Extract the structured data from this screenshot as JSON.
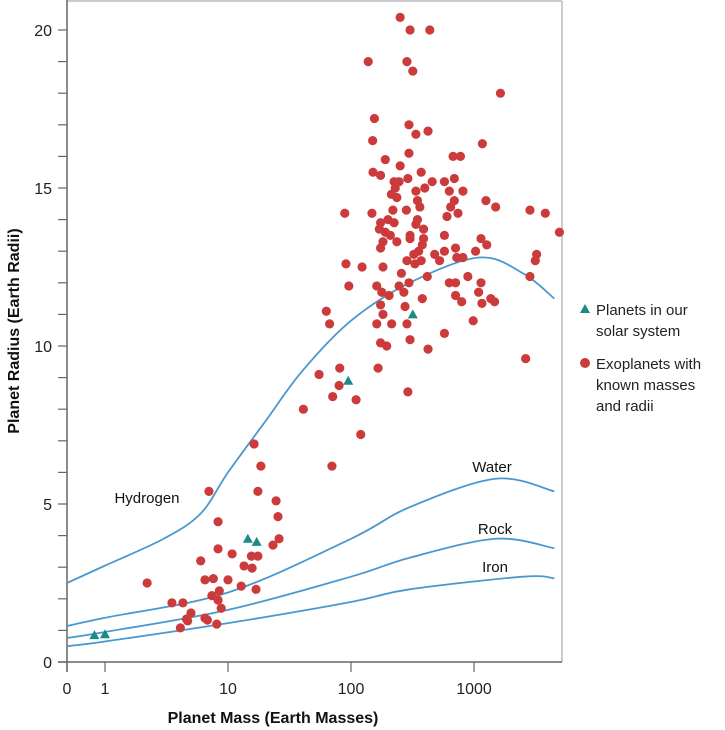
{
  "chart_data": {
    "type": "scatter",
    "title": "",
    "xlabel": "Planet Mass (Earth Masses)",
    "ylabel": "Planet Radius (Earth Radii)",
    "x_scale": "log (with 0 at origin)",
    "x_ticks": [
      {
        "value": 0,
        "label": "0"
      },
      {
        "value": 1,
        "label": "1"
      },
      {
        "value": 10,
        "label": "10"
      },
      {
        "value": 100,
        "label": "100"
      },
      {
        "value": 1000,
        "label": "1000"
      }
    ],
    "y_ticks": [
      {
        "value": 0,
        "label": "0"
      },
      {
        "value": 5,
        "label": "5"
      },
      {
        "value": 10,
        "label": "10"
      },
      {
        "value": 15,
        "label": "15"
      },
      {
        "value": 20,
        "label": "20"
      }
    ],
    "ylim": [
      0,
      21
    ],
    "xlim": [
      0,
      5000
    ],
    "grid": false,
    "legend_position": "right",
    "colors": {
      "solar": "#1a8c84",
      "exo": "#cc3b3b",
      "curve": "#4a98d0"
    },
    "series": [
      {
        "name": "Planets in our solar system",
        "marker": "triangle",
        "points": [
          [
            0.82,
            0.85
          ],
          [
            1,
            0.88
          ],
          [
            14.5,
            3.9
          ],
          [
            17.1,
            3.8
          ],
          [
            95,
            8.9
          ],
          [
            318,
            11.0
          ]
        ]
      },
      {
        "name": "Exoplanets with known masses and radii",
        "marker": "circle",
        "points": [
          [
            2.2,
            2.5
          ],
          [
            3.5,
            1.87
          ],
          [
            4.3,
            1.87
          ],
          [
            5.0,
            1.55
          ],
          [
            4.6,
            1.36
          ],
          [
            4.7,
            1.3
          ],
          [
            4.1,
            1.08
          ],
          [
            6.5,
            2.6
          ],
          [
            7.6,
            2.64
          ],
          [
            10,
            2.6
          ],
          [
            7.4,
            2.1
          ],
          [
            8.5,
            2.25
          ],
          [
            8.3,
            1.96
          ],
          [
            8.8,
            1.7
          ],
          [
            6.5,
            1.39
          ],
          [
            6.8,
            1.33
          ],
          [
            8.1,
            1.2
          ],
          [
            12.8,
            2.4
          ],
          [
            13.5,
            3.04
          ],
          [
            15.7,
            2.97
          ],
          [
            16.9,
            2.3
          ],
          [
            6.0,
            3.2
          ],
          [
            8.3,
            3.58
          ],
          [
            7.0,
            5.4
          ],
          [
            8.3,
            4.44
          ],
          [
            10.8,
            3.42
          ],
          [
            15.5,
            3.35
          ],
          [
            17.5,
            3.35
          ],
          [
            16.3,
            6.9
          ],
          [
            17.5,
            5.4
          ],
          [
            18.5,
            6.2
          ],
          [
            23.2,
            3.7
          ],
          [
            24.6,
            5.1
          ],
          [
            25.5,
            4.6
          ],
          [
            26,
            3.9
          ],
          [
            41,
            8.0
          ],
          [
            55,
            9.1
          ],
          [
            81,
            9.3
          ],
          [
            80,
            8.75
          ],
          [
            71,
            8.4
          ],
          [
            110,
            8.3
          ],
          [
            120,
            7.2
          ],
          [
            70,
            6.2
          ],
          [
            166,
            9.3
          ],
          [
            290,
            8.55
          ],
          [
            63,
            11.1
          ],
          [
            67,
            10.7
          ],
          [
            91,
            12.6
          ],
          [
            96,
            11.9
          ],
          [
            89,
            14.2
          ],
          [
            123,
            12.5
          ],
          [
            138,
            19.0
          ],
          [
            2630,
            9.6
          ],
          [
            251,
            20.4
          ],
          [
            302,
            20.0
          ],
          [
            437,
            20.0
          ],
          [
            285,
            19.0
          ],
          [
            318,
            18.7
          ],
          [
            1640,
            18.0
          ],
          [
            155,
            17.2
          ],
          [
            296,
            17.0
          ],
          [
            337,
            16.7
          ],
          [
            423,
            16.8
          ],
          [
            150,
            16.5
          ],
          [
            1170,
            16.4
          ],
          [
            296,
            16.1
          ],
          [
            676,
            16.0
          ],
          [
            776,
            16.0
          ],
          [
            190,
            15.9
          ],
          [
            251,
            15.7
          ],
          [
            151,
            15.5
          ],
          [
            174,
            15.4
          ],
          [
            372,
            15.5
          ],
          [
            224,
            15.2
          ],
          [
            246,
            15.2
          ],
          [
            290,
            15.3
          ],
          [
            457,
            15.2
          ],
          [
            575,
            15.2
          ],
          [
            692,
            15.3
          ],
          [
            229,
            15.0
          ],
          [
            213,
            14.8
          ],
          [
            236,
            14.7
          ],
          [
            337,
            14.9
          ],
          [
            398,
            15.0
          ],
          [
            630,
            14.9
          ],
          [
            813,
            14.9
          ],
          [
            347,
            14.6
          ],
          [
            692,
            14.6
          ],
          [
            1250,
            14.6
          ],
          [
            363,
            14.4
          ],
          [
            646,
            14.4
          ],
          [
            1500,
            14.4
          ],
          [
            2850,
            14.3
          ],
          [
            3800,
            14.2
          ],
          [
            4950,
            13.6
          ],
          [
            148,
            14.2
          ],
          [
            219,
            14.3
          ],
          [
            282,
            14.3
          ],
          [
            347,
            14.0
          ],
          [
            174,
            13.9
          ],
          [
            200,
            14.0
          ],
          [
            224,
            13.9
          ],
          [
            337,
            13.85
          ],
          [
            603,
            14.1
          ],
          [
            741,
            14.2
          ],
          [
            170,
            13.7
          ],
          [
            190,
            13.6
          ],
          [
            209,
            13.5
          ],
          [
            389,
            13.7
          ],
          [
            302,
            13.5
          ],
          [
            302,
            13.4
          ],
          [
            389,
            13.4
          ],
          [
            575,
            13.5
          ],
          [
            1140,
            13.4
          ],
          [
            1270,
            13.2
          ],
          [
            182,
            13.3
          ],
          [
            236,
            13.3
          ],
          [
            174,
            13.1
          ],
          [
            380,
            13.2
          ],
          [
            355,
            13.0
          ],
          [
            324,
            12.9
          ],
          [
            479,
            12.9
          ],
          [
            525,
            12.7
          ],
          [
            575,
            13.0
          ],
          [
            708,
            13.1
          ],
          [
            724,
            12.8
          ],
          [
            813,
            12.8
          ],
          [
            1030,
            13.0
          ],
          [
            3230,
            12.9
          ],
          [
            3150,
            12.7
          ],
          [
            285,
            12.7
          ],
          [
            331,
            12.6
          ],
          [
            372,
            12.7
          ],
          [
            182,
            12.5
          ],
          [
            257,
            12.3
          ],
          [
            417,
            12.2
          ],
          [
            891,
            12.2
          ],
          [
            1140,
            12.0
          ],
          [
            178,
            11.7
          ],
          [
            204,
            11.6
          ],
          [
            246,
            11.9
          ],
          [
            296,
            12.0
          ],
          [
            269,
            11.7
          ],
          [
            630,
            12.0
          ],
          [
            708,
            12.0
          ],
          [
            1090,
            11.7
          ],
          [
            708,
            11.6
          ],
          [
            794,
            11.4
          ],
          [
            1160,
            11.35
          ],
          [
            1370,
            11.5
          ],
          [
            1470,
            11.4
          ],
          [
            2850,
            12.2
          ],
          [
            380,
            11.5
          ],
          [
            174,
            11.3
          ],
          [
            275,
            11.25
          ],
          [
            162,
            10.7
          ],
          [
            214,
            10.7
          ],
          [
            285,
            10.7
          ],
          [
            182,
            11.0
          ],
          [
            985,
            10.8
          ],
          [
            575,
            10.4
          ],
          [
            174,
            10.1
          ],
          [
            195,
            10.0
          ],
          [
            302,
            10.2
          ],
          [
            423,
            9.9
          ],
          [
            162,
            11.9
          ]
        ]
      }
    ],
    "curves": [
      {
        "label": "Hydrogen",
        "points": [
          [
            0,
            2.5
          ],
          [
            1,
            3.05
          ],
          [
            3,
            3.9
          ],
          [
            6,
            4.7
          ],
          [
            10,
            6.0
          ],
          [
            20,
            7.6
          ],
          [
            40,
            9.2
          ],
          [
            100,
            10.8
          ],
          [
            300,
            12.0
          ],
          [
            1100,
            12.8
          ],
          [
            2500,
            12.3
          ],
          [
            4500,
            11.5
          ]
        ]
      },
      {
        "label": "Water",
        "points": [
          [
            0,
            1.14
          ],
          [
            1,
            1.4
          ],
          [
            10,
            2.2
          ],
          [
            100,
            3.9
          ],
          [
            300,
            4.9
          ],
          [
            1500,
            5.8
          ],
          [
            4500,
            5.4
          ]
        ]
      },
      {
        "label": "Rock",
        "points": [
          [
            0,
            0.76
          ],
          [
            1,
            0.95
          ],
          [
            10,
            1.65
          ],
          [
            100,
            2.7
          ],
          [
            300,
            3.3
          ],
          [
            1500,
            3.9
          ],
          [
            4500,
            3.6
          ]
        ]
      },
      {
        "label": "Iron",
        "points": [
          [
            0,
            0.5
          ],
          [
            1,
            0.65
          ],
          [
            10,
            1.23
          ],
          [
            100,
            1.9
          ],
          [
            300,
            2.3
          ],
          [
            2500,
            2.7
          ],
          [
            4500,
            2.65
          ]
        ]
      }
    ]
  },
  "legend": {
    "solar_lines": [
      "Planets in our",
      "solar system"
    ],
    "exo_lines": [
      "Exoplanets with",
      "known masses",
      "and radii"
    ]
  }
}
